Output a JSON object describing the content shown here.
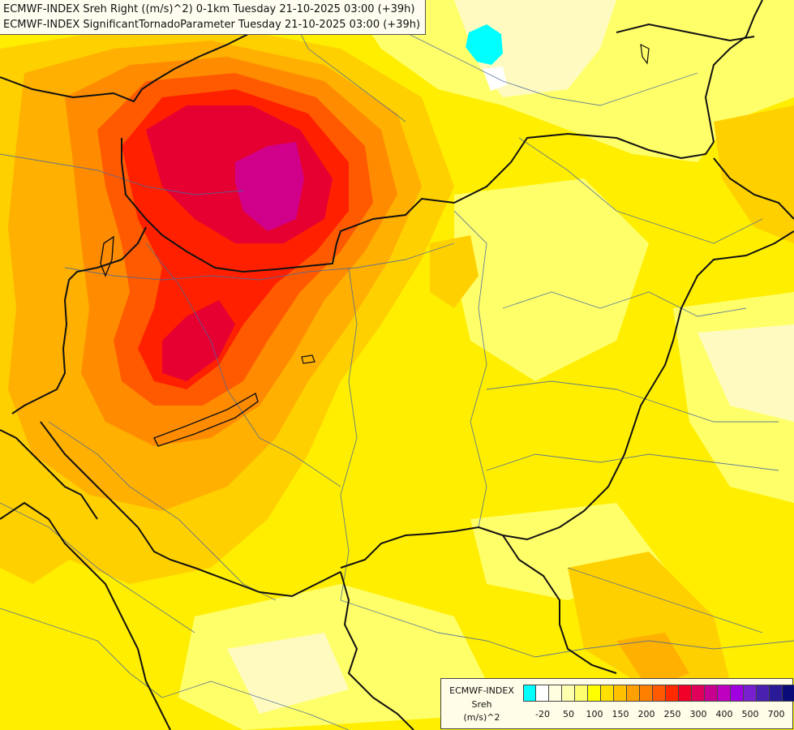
{
  "header": {
    "line1": "ECMWF-INDEX Sreh Right ((m/s)^2) 0-1km Tuesday 21-10-2025 03:00 (+39h)",
    "line2": "ECMWF-INDEX SignificantTornadoParameter Tuesday 21-10-2025 03:00 (+39h)"
  },
  "legend": {
    "source": "ECMWF-INDEX",
    "param": "Sreh",
    "unit": "(m/s)^2",
    "colors": [
      "#00ffff",
      "#ffffff",
      "#ffffe0",
      "#ffffb0",
      "#ffff70",
      "#ffff00",
      "#ffe000",
      "#ffc000",
      "#ffa000",
      "#ff8000",
      "#ff5a00",
      "#ff2a00",
      "#f00028",
      "#e0005a",
      "#c80090",
      "#c000c0",
      "#a000e0",
      "#7820d0",
      "#4a20b0",
      "#2a1a98",
      "#0a0a78"
    ],
    "ticks": [
      "-20",
      "50",
      "100",
      "150",
      "200",
      "250",
      "300",
      "400",
      "500",
      "700"
    ]
  },
  "map": {
    "colors": {
      "base": "#ffee00",
      "light": "#ffff6a",
      "pale": "#fffbc0",
      "orange1": "#ffd000",
      "orange2": "#ffb000",
      "orange3": "#ff8c00",
      "red1": "#ff5a00",
      "red2": "#ff2000",
      "crimson": "#e60032",
      "magenta": "#d0008a",
      "cyan": "#00ffff"
    }
  }
}
